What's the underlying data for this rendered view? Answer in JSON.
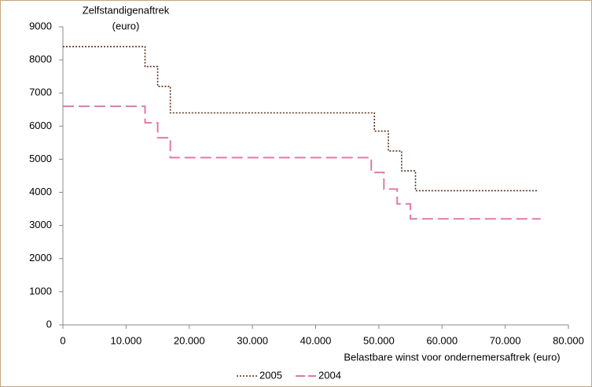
{
  "chart_data": {
    "type": "line",
    "ylabel": [
      "Zelfstandigenaftrek",
      "(euro)"
    ],
    "xlabel": "Belastbare winst voor ondernemersaftrek (euro)",
    "series": [
      {
        "name": "2005",
        "color": "#5a2d1a",
        "style": "dotted",
        "x": [
          0,
          13000,
          13000,
          15000,
          15000,
          17000,
          17000,
          49300,
          49300,
          51500,
          51500,
          53600,
          53600,
          55800,
          55800,
          75000
        ],
        "values": [
          8400,
          8400,
          7800,
          7800,
          7200,
          7200,
          6400,
          6400,
          5850,
          5850,
          5250,
          5250,
          4650,
          4650,
          4050,
          4050
        ]
      },
      {
        "name": "2004",
        "color": "#e07aa8",
        "style": "dashed",
        "x": [
          0,
          13000,
          13000,
          15000,
          15000,
          17000,
          17000,
          48800,
          48800,
          50800,
          50800,
          52900,
          52900,
          55000,
          55000,
          75600
        ],
        "values": [
          6600,
          6600,
          6100,
          6100,
          5650,
          5650,
          5050,
          5050,
          4600,
          4600,
          4100,
          4100,
          3650,
          3650,
          3200,
          3200
        ]
      }
    ],
    "xlim": [
      0,
      80000
    ],
    "xticks": [
      0,
      {
        "value": 10000,
        "label": "10.000"
      },
      {
        "value": 20000,
        "label": "20.000"
      },
      {
        "value": 30000,
        "label": "30.000"
      },
      {
        "value": 40000,
        "label": "40.000"
      },
      {
        "value": 50000,
        "label": "50.000"
      },
      {
        "value": 60000,
        "label": "60.000"
      },
      {
        "value": 70000,
        "label": "70.000"
      },
      {
        "value": 80000,
        "label": "80.000"
      }
    ],
    "ylim": [
      0,
      9000
    ],
    "yticks": [
      0,
      1000,
      2000,
      3000,
      4000,
      5000,
      6000,
      7000,
      8000,
      9000
    ],
    "grid": false,
    "legend": "bottom"
  }
}
